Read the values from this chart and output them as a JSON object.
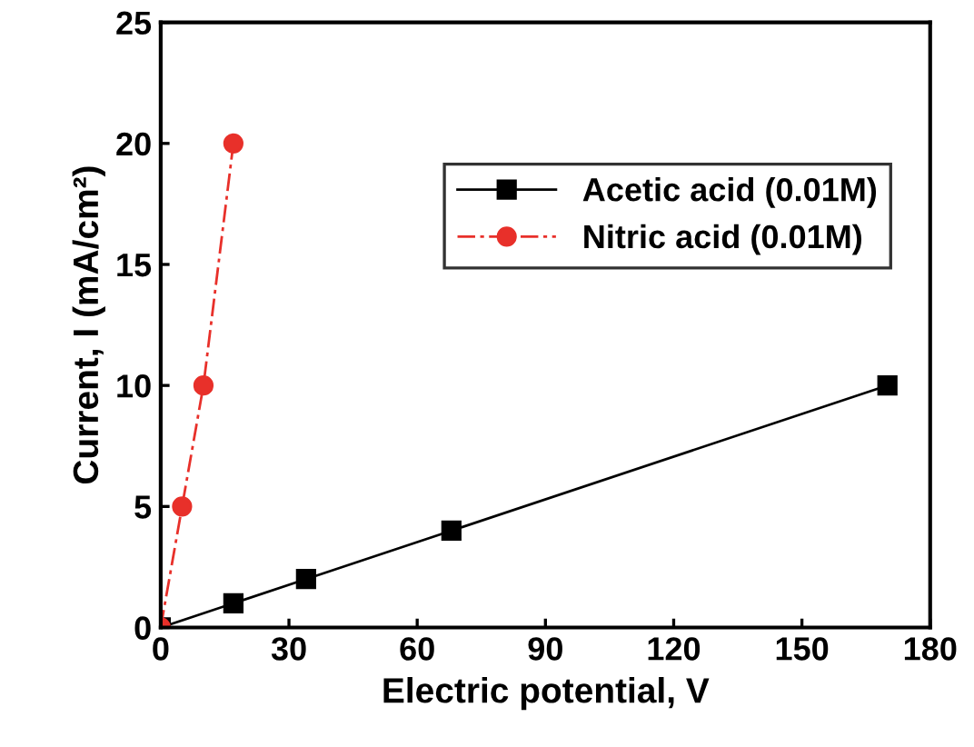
{
  "chart_data": {
    "type": "line",
    "xlabel": "Electric potential, V",
    "ylabel": "Current, I (mA/cm²)",
    "xlim": [
      0,
      180
    ],
    "xticks": [
      0,
      30,
      60,
      90,
      120,
      150,
      180
    ],
    "ylim": [
      0,
      25
    ],
    "yticks": [
      0,
      5,
      10,
      15,
      20,
      25
    ],
    "grid": false,
    "legend": "right",
    "series": [
      {
        "name": "Acetic acid (0.01M)",
        "color": "#000000",
        "marker": "square",
        "line_style": "solid",
        "x": [
          0,
          17,
          34,
          68,
          170
        ],
        "values": [
          0,
          1,
          2,
          4,
          10
        ]
      },
      {
        "name": "Nitric acid (0.01M)",
        "color": "#e8302a",
        "marker": "circle",
        "line_style": "dashed",
        "x": [
          0,
          5,
          10,
          17
        ],
        "values": [
          0,
          5,
          10,
          20
        ]
      }
    ]
  }
}
